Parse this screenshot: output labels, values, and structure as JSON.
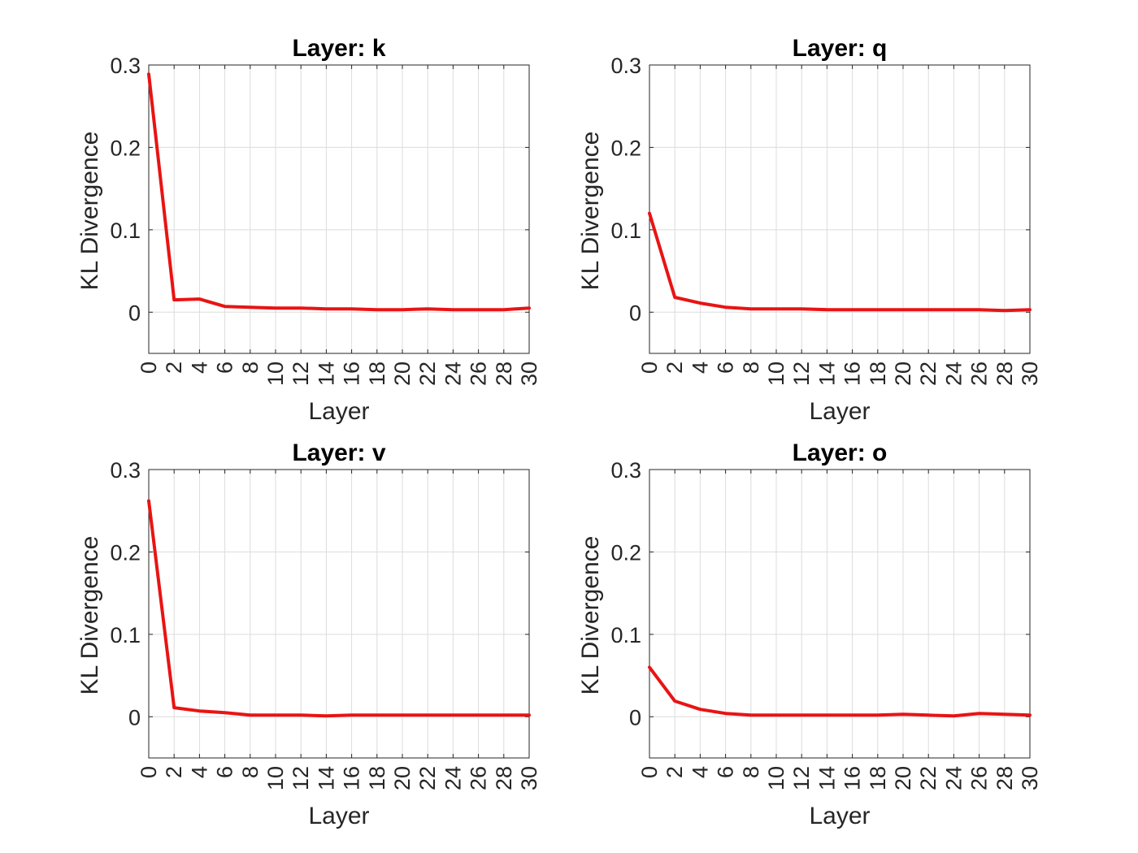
{
  "chart_data": [
    {
      "type": "line",
      "title": "Layer: k",
      "xlabel": "Layer",
      "ylabel": "KL Divergence",
      "xlim": [
        0,
        30
      ],
      "ylim": [
        -0.05,
        0.3
      ],
      "xticks": [
        "0",
        "2",
        "4",
        "6",
        "8",
        "10",
        "12",
        "14",
        "16",
        "18",
        "20",
        "22",
        "24",
        "26",
        "28",
        "30"
      ],
      "yticks": [
        "0",
        "0.1",
        "0.2",
        "0.3"
      ],
      "grid": true,
      "x": [
        0,
        2,
        4,
        6,
        8,
        10,
        12,
        14,
        16,
        18,
        20,
        22,
        24,
        26,
        28,
        30
      ],
      "values": [
        0.289,
        0.015,
        0.016,
        0.007,
        0.006,
        0.005,
        0.005,
        0.004,
        0.004,
        0.003,
        0.003,
        0.004,
        0.003,
        0.003,
        0.003,
        0.005
      ],
      "line_color": "#e81414"
    },
    {
      "type": "line",
      "title": "Layer: q",
      "xlabel": "Layer",
      "ylabel": "KL Divergence",
      "xlim": [
        0,
        30
      ],
      "ylim": [
        -0.05,
        0.3
      ],
      "xticks": [
        "0",
        "2",
        "4",
        "6",
        "8",
        "10",
        "12",
        "14",
        "16",
        "18",
        "20",
        "22",
        "24",
        "26",
        "28",
        "30"
      ],
      "yticks": [
        "0",
        "0.1",
        "0.2",
        "0.3"
      ],
      "grid": true,
      "x": [
        0,
        2,
        4,
        6,
        8,
        10,
        12,
        14,
        16,
        18,
        20,
        22,
        24,
        26,
        28,
        30
      ],
      "values": [
        0.12,
        0.018,
        0.011,
        0.006,
        0.004,
        0.004,
        0.004,
        0.003,
        0.003,
        0.003,
        0.003,
        0.003,
        0.003,
        0.003,
        0.002,
        0.003
      ],
      "line_color": "#e81414"
    },
    {
      "type": "line",
      "title": "Layer: v",
      "xlabel": "Layer",
      "ylabel": "KL Divergence",
      "xlim": [
        0,
        30
      ],
      "ylim": [
        -0.05,
        0.3
      ],
      "xticks": [
        "0",
        "2",
        "4",
        "6",
        "8",
        "10",
        "12",
        "14",
        "16",
        "18",
        "20",
        "22",
        "24",
        "26",
        "28",
        "30"
      ],
      "yticks": [
        "0",
        "0.1",
        "0.2",
        "0.3"
      ],
      "grid": true,
      "x": [
        0,
        2,
        4,
        6,
        8,
        10,
        12,
        14,
        16,
        18,
        20,
        22,
        24,
        26,
        28,
        30
      ],
      "values": [
        0.262,
        0.011,
        0.007,
        0.005,
        0.002,
        0.002,
        0.002,
        0.001,
        0.002,
        0.002,
        0.002,
        0.002,
        0.002,
        0.002,
        0.002,
        0.002
      ],
      "line_color": "#e81414"
    },
    {
      "type": "line",
      "title": "Layer: o",
      "xlabel": "Layer",
      "ylabel": "KL Divergence",
      "xlim": [
        0,
        30
      ],
      "ylim": [
        -0.05,
        0.3
      ],
      "xticks": [
        "0",
        "2",
        "4",
        "6",
        "8",
        "10",
        "12",
        "14",
        "16",
        "18",
        "20",
        "22",
        "24",
        "26",
        "28",
        "30"
      ],
      "yticks": [
        "0",
        "0.1",
        "0.2",
        "0.3"
      ],
      "grid": true,
      "x": [
        0,
        2,
        4,
        6,
        8,
        10,
        12,
        14,
        16,
        18,
        20,
        22,
        24,
        26,
        28,
        30
      ],
      "values": [
        0.06,
        0.019,
        0.009,
        0.004,
        0.002,
        0.002,
        0.002,
        0.002,
        0.002,
        0.002,
        0.003,
        0.002,
        0.001,
        0.004,
        0.003,
        0.002
      ],
      "line_color": "#e81414"
    }
  ]
}
